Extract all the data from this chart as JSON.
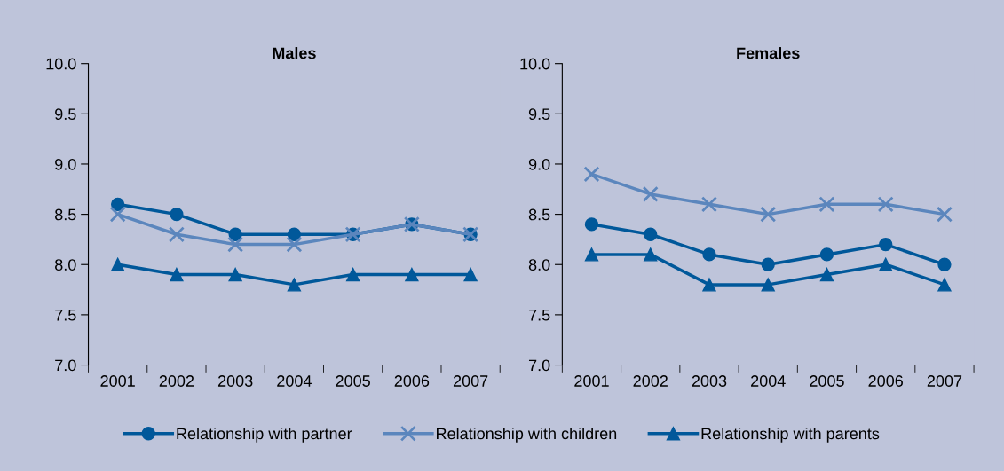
{
  "chart_data": [
    {
      "type": "line",
      "title": "Males",
      "categories": [
        "2001",
        "2002",
        "2003",
        "2004",
        "2005",
        "2006",
        "2007"
      ],
      "ylim": [
        7.0,
        10.0
      ],
      "yticks": [
        {
          "value": 7.0,
          "label": "7.0"
        },
        {
          "value": 7.5,
          "label": "7.5"
        },
        {
          "value": 8.0,
          "label": "8.0"
        },
        {
          "value": 8.5,
          "label": "8.5"
        },
        {
          "value": 9.0,
          "label": "9.0"
        },
        {
          "value": 9.5,
          "label": "9.5"
        },
        {
          "value": 10.0,
          "label": "10.0"
        }
      ],
      "grid": false,
      "legend": "bottom",
      "series": [
        {
          "name": "Relationship with partner",
          "color": "#00589a",
          "marker": "circle",
          "values": [
            8.6,
            8.5,
            8.3,
            8.3,
            8.3,
            8.4,
            8.3
          ]
        },
        {
          "name": "Relationship with children",
          "color": "#5b86bd",
          "marker": "cross",
          "values": [
            8.5,
            8.3,
            8.2,
            8.2,
            8.3,
            8.4,
            8.3
          ]
        },
        {
          "name": "Relationship with parents",
          "color": "#00589a",
          "marker": "triangle",
          "values": [
            8.0,
            7.9,
            7.9,
            7.8,
            7.9,
            7.9,
            7.9
          ]
        }
      ]
    },
    {
      "type": "line",
      "title": "Females",
      "categories": [
        "2001",
        "2002",
        "2003",
        "2004",
        "2005",
        "2006",
        "2007"
      ],
      "ylim": [
        7.0,
        10.0
      ],
      "yticks": [
        {
          "value": 7.0,
          "label": "7.0"
        },
        {
          "value": 7.5,
          "label": "7.5"
        },
        {
          "value": 8.0,
          "label": "8.0"
        },
        {
          "value": 8.5,
          "label": "8.5"
        },
        {
          "value": 9.0,
          "label": "9.0"
        },
        {
          "value": 9.5,
          "label": "9.5"
        },
        {
          "value": 10.0,
          "label": "10.0"
        }
      ],
      "grid": false,
      "series": [
        {
          "color": "#00589a",
          "marker": "circle",
          "values": [
            8.4,
            8.3,
            8.1,
            8.0,
            8.1,
            8.2,
            8.0
          ]
        },
        {
          "color": "#5b86bd",
          "marker": "cross",
          "values": [
            8.9,
            8.7,
            8.6,
            8.5,
            8.6,
            8.6,
            8.5
          ]
        },
        {
          "color": "#00589a",
          "marker": "triangle",
          "values": [
            8.1,
            8.1,
            7.8,
            7.8,
            7.9,
            8.0,
            7.8
          ]
        }
      ]
    }
  ]
}
